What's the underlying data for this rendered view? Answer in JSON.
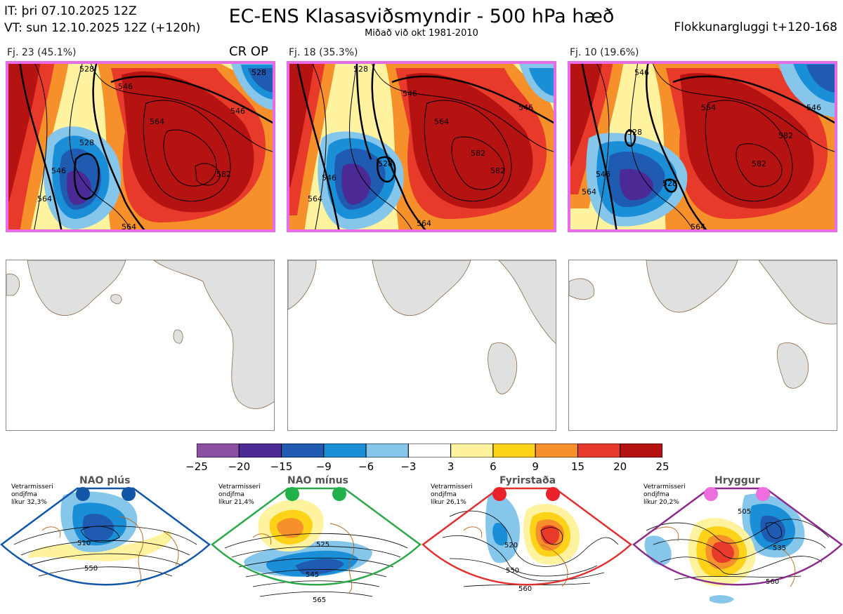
{
  "header": {
    "it_line": "IT: þri 07.10.2025 12Z",
    "vt_line": "VT: sun 12.10.2025 12Z  (+120h)",
    "title": "EC-ENS Klasasviðsmyndir - 500 hPa hæð",
    "subtitle": "Miðað við okt 1981-2010",
    "window": "Flokkunargluggi t+120-168"
  },
  "clusters": [
    {
      "label": "Fj. 23 (45.1%)",
      "extra": "CR OP",
      "border": "#e86be8"
    },
    {
      "label": "Fj. 18 (35.3%)",
      "extra": "",
      "border": "#e86be8"
    },
    {
      "label": "Fj. 10 (19.6%)",
      "extra": "",
      "border": "#e86be8"
    }
  ],
  "chart_data": {
    "type": "heatmap",
    "title": "EC-ENS Klasasviðsmyndir - 500 hPa hæð",
    "colorbar": {
      "ticks": [
        "−25",
        "−20",
        "−15",
        "−9",
        "−6",
        "−3",
        "3",
        "6",
        "9",
        "15",
        "20",
        "25"
      ],
      "colors": [
        "#8a4fa0",
        "#4b2a96",
        "#1f5bb0",
        "#1a8fd8",
        "#86c6ea",
        "#ffffff",
        "#fff3a0",
        "#ffd21a",
        "#f5902a",
        "#e83a2a",
        "#b51212"
      ]
    },
    "cluster_contour_labels": [
      [
        "528",
        "546",
        "564",
        "528",
        "546",
        "564",
        "582",
        "564",
        "528",
        "546"
      ],
      [
        "528",
        "546",
        "564",
        "546",
        "564",
        "582",
        "564",
        "528",
        "546",
        "582"
      ],
      [
        "546",
        "564",
        "528",
        "546",
        "564",
        "582",
        "564",
        "528",
        "546",
        "582"
      ]
    ]
  },
  "regimes": [
    {
      "name": "NAO plús",
      "info": [
        "Vetrarmisseri",
        "ondjfma",
        "líkur 32,3%"
      ],
      "color": "#1f5bb0",
      "dot": "#1256a8",
      "contours": [
        "510",
        "550"
      ]
    },
    {
      "name": "NAO mínus",
      "info": [
        "Vetrarmisseri",
        "ondjfma",
        "líkur 21,4%"
      ],
      "color": "#2aa84a",
      "dot": "#22b04a",
      "contours": [
        "525",
        "545",
        "565"
      ]
    },
    {
      "name": "Fyrirstaða",
      "info": [
        "Vetrarmisseri",
        "ondjfma",
        "líkur 26,1%"
      ],
      "color": "#e03030",
      "dot": "#e8212a",
      "contours": [
        "520",
        "550",
        "560"
      ]
    },
    {
      "name": "Hryggur",
      "info": [
        "Vetrarmisseri",
        "ondjfma",
        "líkur 20,2%"
      ],
      "color": "#8a2a8a",
      "dot": "#ee6ee0",
      "contours": [
        "505",
        "535",
        "560"
      ]
    }
  ]
}
